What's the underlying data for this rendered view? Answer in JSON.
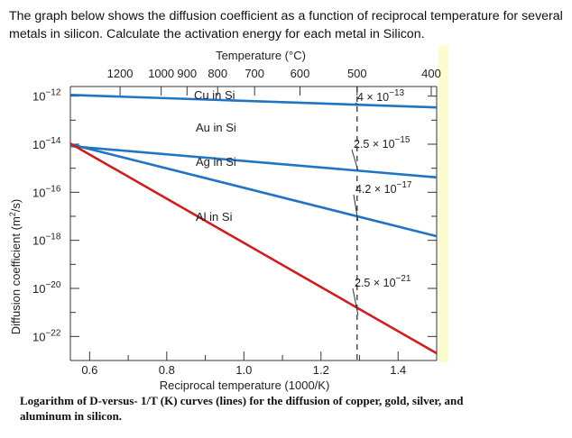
{
  "question": "The graph below shows the diffusion coefficient as a function of reciprocal temperature for several metals in silicon.  Calculate the activation energy for each metal in Silicon.",
  "caption": "Logarithm of D-versus- 1/T (K) curves (lines) for the diffusion of copper, gold, silver, and aluminum in silicon.",
  "colors": {
    "blue": "#1f74c4",
    "red": "#cc1f1f",
    "highlight": "#fdfbd0"
  },
  "chart_data": {
    "type": "line",
    "xlabel": "Reciprocal temperature (1000/K)",
    "ylabel": "Diffusion coefficient (m²/s)",
    "top_axis_label": "Temperature (°C)",
    "xlim": [
      0.55,
      1.5
    ],
    "ylim_log10": [
      -23,
      -11.6
    ],
    "y_scale": "log",
    "x_ticks": [
      {
        "value": 0.6,
        "label": "0.6"
      },
      {
        "value": 0.8,
        "label": "0.8"
      },
      {
        "value": 1.0,
        "label": "1.0"
      },
      {
        "value": 1.2,
        "label": "1.2"
      },
      {
        "value": 1.4,
        "label": "1.4"
      }
    ],
    "x_minor_ticks": [
      0.7,
      0.9,
      1.1,
      1.3
    ],
    "y_ticks": [
      {
        "exp": -12,
        "base": "10",
        "sup": "−12"
      },
      {
        "exp": -14,
        "base": "10",
        "sup": "−14"
      },
      {
        "exp": -16,
        "base": "10",
        "sup": "−16"
      },
      {
        "exp": -18,
        "base": "10",
        "sup": "−18"
      },
      {
        "exp": -20,
        "base": "10",
        "sup": "−20"
      },
      {
        "exp": -22,
        "base": "10",
        "sup": "−22"
      }
    ],
    "y_minor_ticks": [
      -13,
      -15,
      -17,
      -19,
      -21,
      -23
    ],
    "top_ticks": [
      {
        "temp_c": 1200,
        "label": "1200"
      },
      {
        "temp_c": 1000,
        "label": "1000"
      },
      {
        "temp_c": 900,
        "label": "900"
      },
      {
        "temp_c": 800,
        "label": "800"
      },
      {
        "temp_c": 700,
        "label": "700"
      },
      {
        "temp_c": 600,
        "label": "600"
      },
      {
        "temp_c": 500,
        "label": "500"
      },
      {
        "temp_c": 400,
        "label": "400"
      }
    ],
    "reference_line": {
      "temp_c": 500,
      "style": "dashed"
    },
    "series": [
      {
        "name": "Cu in Si",
        "color": "#1f74c4",
        "x": [
          0.55,
          1.5
        ],
        "log10_y": [
          -11.95,
          -12.47
        ]
      },
      {
        "name": "Au in Si",
        "color": "#1f74c4",
        "x": [
          0.55,
          1.5
        ],
        "log10_y": [
          -14.08,
          -15.38
        ]
      },
      {
        "name": "Ag in Si",
        "color": "#1f74c4",
        "x": [
          0.55,
          1.5
        ],
        "log10_y": [
          -14.0,
          -17.83
        ]
      },
      {
        "name": "Al in Si",
        "color": "#cc1f1f",
        "x": [
          0.55,
          1.5
        ],
        "log10_y": [
          -13.97,
          -22.7
        ]
      }
    ],
    "annotations": [
      {
        "text": "4 × 10",
        "sup": "−13"
      },
      {
        "text": "2.5 × 10",
        "sup": "−15"
      },
      {
        "text": "4.2 × 10",
        "sup": "−17"
      },
      {
        "text": "2.5 × 10",
        "sup": "−21"
      }
    ]
  }
}
